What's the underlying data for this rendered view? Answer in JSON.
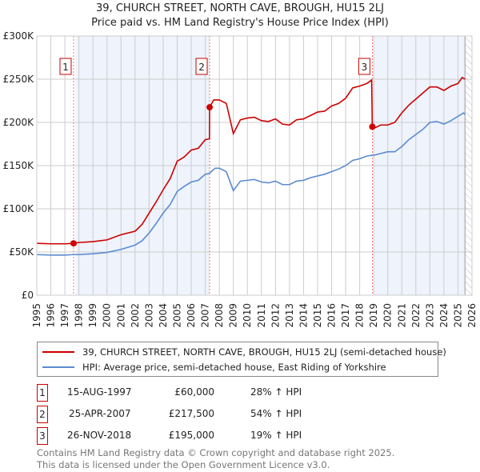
{
  "title": "39, CHURCH STREET, NORTH CAVE, BROUGH, HU15 2LJ",
  "subtitle": "Price paid vs. HM Land Registry's House Price Index (HPI)",
  "chart_data": {
    "type": "line",
    "title": "39, CHURCH STREET, NORTH CAVE, BROUGH, HU15 2LJ",
    "ylim": [
      0,
      300000
    ],
    "xlim": [
      1995,
      2026
    ],
    "yticks": [
      {
        "v": 0,
        "label": "£0"
      },
      {
        "v": 50000,
        "label": "£50K"
      },
      {
        "v": 100000,
        "label": "£100K"
      },
      {
        "v": 150000,
        "label": "£150K"
      },
      {
        "v": 200000,
        "label": "£200K"
      },
      {
        "v": 250000,
        "label": "£250K"
      },
      {
        "v": 300000,
        "label": "£300K"
      }
    ],
    "xticks": [
      "1995",
      "1996",
      "1997",
      "1998",
      "1999",
      "2000",
      "2001",
      "2002",
      "2003",
      "2004",
      "2005",
      "2006",
      "2007",
      "2008",
      "2009",
      "2010",
      "2011",
      "2012",
      "2013",
      "2014",
      "2015",
      "2016",
      "2017",
      "2018",
      "2019",
      "2020",
      "2021",
      "2022",
      "2023",
      "2024",
      "2025",
      "2026"
    ],
    "grid": true,
    "data_end": 2025.5,
    "series": [
      {
        "name": "39, CHURCH STREET, NORTH CAVE, BROUGH, HU15 2LJ (semi-detached house)",
        "color": "#cc0000",
        "x": [
          1995,
          1996,
          1997,
          1997.62,
          1998,
          1999,
          2000,
          2001,
          2002,
          2002.5,
          2003,
          2003.5,
          2004,
          2004.5,
          2005,
          2005.5,
          2006,
          2006.5,
          2007,
          2007.3,
          2007.31,
          2007.6,
          2008,
          2008.5,
          2009,
          2009.5,
          2010,
          2010.5,
          2011,
          2011.5,
          2012,
          2012.5,
          2013,
          2013.5,
          2014,
          2014.5,
          2015,
          2015.5,
          2016,
          2016.5,
          2017,
          2017.5,
          2018,
          2018.5,
          2018.85,
          2018.9,
          2019,
          2019.5,
          2020,
          2020.5,
          2021,
          2021.5,
          2022,
          2022.5,
          2023,
          2023.5,
          2024,
          2024.5,
          2025,
          2025.3,
          2025.5
        ],
        "y": [
          60000,
          59500,
          59500,
          60000,
          61000,
          62000,
          64000,
          70000,
          74000,
          82000,
          95000,
          108000,
          122000,
          135000,
          155000,
          160000,
          168000,
          170000,
          180000,
          181000,
          217500,
          226000,
          226000,
          222000,
          187000,
          203000,
          205000,
          206000,
          202000,
          201000,
          204000,
          198000,
          197000,
          203000,
          204000,
          208000,
          212000,
          213000,
          219000,
          222000,
          228000,
          240000,
          242000,
          245000,
          249000,
          195000,
          193000,
          197000,
          197000,
          200000,
          211000,
          220000,
          227000,
          234000,
          241000,
          241000,
          237000,
          242000,
          245000,
          252000,
          250000
        ]
      },
      {
        "name": "HPI: Average price, semi-detached house, East Riding of Yorkshire",
        "color": "#5b8bd0",
        "x": [
          1995,
          1996,
          1997,
          1997.62,
          1998,
          1999,
          2000,
          2001,
          2002,
          2002.5,
          2003,
          2003.5,
          2004,
          2004.5,
          2005,
          2005.5,
          2006,
          2006.5,
          2007,
          2007.3,
          2007.7,
          2008,
          2008.5,
          2009,
          2009.5,
          2010,
          2010.5,
          2011,
          2011.5,
          2012,
          2012.5,
          2013,
          2013.5,
          2014,
          2014.5,
          2015,
          2015.5,
          2016,
          2016.5,
          2017,
          2017.5,
          2018,
          2018.5,
          2018.9,
          2019,
          2019.5,
          2020,
          2020.5,
          2021,
          2021.5,
          2022,
          2022.5,
          2023,
          2023.5,
          2024,
          2024.5,
          2025,
          2025.4,
          2025.5
        ],
        "y": [
          47000,
          46500,
          46500,
          47000,
          47000,
          48000,
          49500,
          53000,
          58000,
          63000,
          72000,
          83000,
          95000,
          105000,
          120000,
          126000,
          131000,
          133000,
          140000,
          141000,
          147000,
          147000,
          143000,
          121000,
          132000,
          133000,
          134000,
          131000,
          130000,
          132000,
          128000,
          128000,
          132000,
          133000,
          136000,
          138000,
          140000,
          143000,
          146000,
          150000,
          156000,
          158000,
          161000,
          162000,
          162000,
          164000,
          166000,
          166000,
          172000,
          180000,
          186000,
          192000,
          200000,
          201000,
          198000,
          202000,
          207000,
          211000,
          209000
        ]
      }
    ],
    "sales": [
      {
        "num": "1",
        "date": "15-AUG-1997",
        "x": 1997.62,
        "price": 60000,
        "price_label": "£60,000",
        "hpi": "28% ↑ HPI"
      },
      {
        "num": "2",
        "date": "25-APR-2007",
        "x": 2007.31,
        "price": 217500,
        "price_label": "£217,500",
        "hpi": "54% ↑ HPI"
      },
      {
        "num": "3",
        "date": "26-NOV-2018",
        "x": 2018.9,
        "price": 195000,
        "price_label": "£195,000",
        "hpi": "19% ↑ HPI"
      }
    ]
  },
  "legend": {
    "red": "39, CHURCH STREET, NORTH CAVE, BROUGH, HU15 2LJ (semi-detached house)",
    "blue": "HPI: Average price, semi-detached house, East Riding of Yorkshire"
  },
  "footer": [
    "Contains HM Land Registry data © Crown copyright and database right 2025.",
    "This data is licensed under the Open Government Licence v3.0."
  ]
}
